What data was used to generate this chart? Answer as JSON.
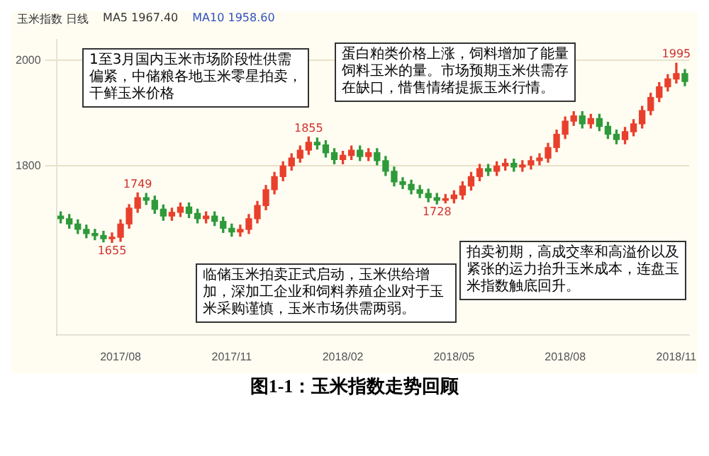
{
  "chart_data": {
    "type": "candlestick",
    "title": "图1-1：玉米指数走势回顾",
    "subtitle": "玉米指数 日线",
    "categories": [
      null,
      null,
      null,
      null,
      null,
      null,
      null,
      "2017/08",
      null,
      null,
      null,
      null,
      null,
      null,
      null,
      null,
      null,
      null,
      null,
      null,
      "2017/11",
      null,
      null,
      null,
      null,
      null,
      null,
      null,
      null,
      null,
      null,
      null,
      null,
      "2018/02",
      null,
      null,
      null,
      null,
      null,
      null,
      null,
      null,
      null,
      null,
      null,
      null,
      "2018/05",
      null,
      null,
      null,
      null,
      null,
      null,
      null,
      null,
      null,
      null,
      null,
      null,
      "2018/08",
      null,
      null,
      null,
      null,
      null,
      null,
      null,
      null,
      null,
      null,
      null,
      null,
      "2018/11",
      null
    ],
    "ohlc": [
      [
        1705,
        1713,
        1692,
        1700
      ],
      [
        1700,
        1708,
        1682,
        1690
      ],
      [
        1690,
        1698,
        1672,
        1680
      ],
      [
        1680,
        1688,
        1664,
        1672
      ],
      [
        1672,
        1680,
        1660,
        1668
      ],
      [
        1668,
        1676,
        1656,
        1662
      ],
      [
        1662,
        1673,
        1655,
        1665
      ],
      [
        1665,
        1698,
        1657,
        1690
      ],
      [
        1690,
        1727,
        1682,
        1720
      ],
      [
        1720,
        1749,
        1712,
        1740
      ],
      [
        1740,
        1748,
        1727,
        1735
      ],
      [
        1735,
        1743,
        1710,
        1718
      ],
      [
        1718,
        1726,
        1697,
        1705
      ],
      [
        1705,
        1720,
        1697,
        1712
      ],
      [
        1712,
        1730,
        1704,
        1722
      ],
      [
        1722,
        1730,
        1702,
        1710
      ],
      [
        1710,
        1718,
        1692,
        1700
      ],
      [
        1700,
        1713,
        1692,
        1705
      ],
      [
        1705,
        1713,
        1687,
        1695
      ],
      [
        1695,
        1703,
        1674,
        1682
      ],
      [
        1682,
        1690,
        1667,
        1675
      ],
      [
        1675,
        1688,
        1667,
        1680
      ],
      [
        1680,
        1708,
        1672,
        1700
      ],
      [
        1700,
        1733,
        1692,
        1725
      ],
      [
        1725,
        1763,
        1717,
        1755
      ],
      [
        1755,
        1788,
        1747,
        1780
      ],
      [
        1780,
        1808,
        1772,
        1800
      ],
      [
        1800,
        1823,
        1792,
        1815
      ],
      [
        1815,
        1838,
        1807,
        1830
      ],
      [
        1830,
        1855,
        1822,
        1845
      ],
      [
        1845,
        1853,
        1832,
        1840
      ],
      [
        1840,
        1848,
        1817,
        1825
      ],
      [
        1825,
        1833,
        1804,
        1812
      ],
      [
        1812,
        1828,
        1804,
        1820
      ],
      [
        1820,
        1838,
        1812,
        1830
      ],
      [
        1830,
        1838,
        1810,
        1818
      ],
      [
        1818,
        1833,
        1810,
        1825
      ],
      [
        1825,
        1833,
        1802,
        1810
      ],
      [
        1810,
        1818,
        1782,
        1790
      ],
      [
        1790,
        1798,
        1762,
        1770
      ],
      [
        1770,
        1778,
        1757,
        1765
      ],
      [
        1765,
        1773,
        1747,
        1755
      ],
      [
        1755,
        1763,
        1740,
        1748
      ],
      [
        1748,
        1756,
        1732,
        1740
      ],
      [
        1740,
        1748,
        1728,
        1735
      ],
      [
        1735,
        1746,
        1730,
        1738
      ],
      [
        1738,
        1753,
        1730,
        1745
      ],
      [
        1745,
        1770,
        1737,
        1762
      ],
      [
        1762,
        1788,
        1754,
        1780
      ],
      [
        1780,
        1803,
        1772,
        1795
      ],
      [
        1795,
        1803,
        1782,
        1790
      ],
      [
        1790,
        1808,
        1782,
        1800
      ],
      [
        1800,
        1813,
        1792,
        1805
      ],
      [
        1805,
        1813,
        1790,
        1798
      ],
      [
        1798,
        1810,
        1790,
        1802
      ],
      [
        1802,
        1818,
        1794,
        1810
      ],
      [
        1810,
        1823,
        1802,
        1815
      ],
      [
        1815,
        1843,
        1807,
        1835
      ],
      [
        1835,
        1868,
        1827,
        1860
      ],
      [
        1860,
        1893,
        1852,
        1885
      ],
      [
        1885,
        1903,
        1877,
        1895
      ],
      [
        1895,
        1903,
        1872,
        1880
      ],
      [
        1880,
        1898,
        1872,
        1890
      ],
      [
        1890,
        1898,
        1867,
        1875
      ],
      [
        1875,
        1883,
        1852,
        1860
      ],
      [
        1860,
        1868,
        1842,
        1850
      ],
      [
        1850,
        1873,
        1842,
        1865
      ],
      [
        1865,
        1888,
        1857,
        1880
      ],
      [
        1880,
        1913,
        1872,
        1905
      ],
      [
        1905,
        1938,
        1897,
        1930
      ],
      [
        1930,
        1958,
        1922,
        1950
      ],
      [
        1950,
        1973,
        1942,
        1965
      ],
      [
        1965,
        1995,
        1957,
        1975
      ],
      [
        1975,
        1983,
        1952,
        1960
      ]
    ],
    "colors": [
      "#2e9a3a",
      "#2e9a3a",
      "#2e9a3a",
      "#2e9a3a",
      "#2e9a3a",
      "#2e9a3a",
      "#e8402c",
      "#e8402c",
      "#e8402c",
      "#e8402c",
      "#2e9a3a",
      "#2e9a3a",
      "#2e9a3a",
      "#e8402c",
      "#e8402c",
      "#2e9a3a",
      "#2e9a3a",
      "#e8402c",
      "#2e9a3a",
      "#2e9a3a",
      "#2e9a3a",
      "#e8402c",
      "#e8402c",
      "#e8402c",
      "#e8402c",
      "#e8402c",
      "#e8402c",
      "#e8402c",
      "#e8402c",
      "#e8402c",
      "#2e9a3a",
      "#2e9a3a",
      "#2e9a3a",
      "#e8402c",
      "#e8402c",
      "#2e9a3a",
      "#e8402c",
      "#2e9a3a",
      "#2e9a3a",
      "#2e9a3a",
      "#2e9a3a",
      "#2e9a3a",
      "#2e9a3a",
      "#2e9a3a",
      "#2e9a3a",
      "#e8402c",
      "#e8402c",
      "#e8402c",
      "#e8402c",
      "#e8402c",
      "#2e9a3a",
      "#e8402c",
      "#e8402c",
      "#2e9a3a",
      "#e8402c",
      "#e8402c",
      "#e8402c",
      "#e8402c",
      "#e8402c",
      "#e8402c",
      "#e8402c",
      "#2e9a3a",
      "#e8402c",
      "#2e9a3a",
      "#2e9a3a",
      "#2e9a3a",
      "#e8402c",
      "#e8402c",
      "#e8402c",
      "#e8402c",
      "#e8402c",
      "#e8402c",
      "#e8402c",
      "#2e9a3a"
    ],
    "ylim": [
      1480,
      2040
    ],
    "yticks": [
      1800,
      2000
    ],
    "grid": "y",
    "legend": false,
    "annotations": [
      "MA5 1967.40",
      "MA10 1958.60",
      "1至3月国内玉米市场阶段性供需偏紧，中储粮各地玉米零星拍卖，干鲜玉米价格",
      "蛋白粕类价格上涨，饲料增加了能量饲料玉米的量。市场预期玉米供需存在缺口，惜售情绪提振玉米行情。",
      "临储玉米拍卖正式启动，玉米供给增加，深加工企业和饲料养殖企业对于玉米采购谨慎，玉米市场供需两弱。",
      "拍卖初期，高成交率和高溢价以及紧张的运力抬升玉米成本，连盘玉米指数触底回升。",
      {
        "text": "1655",
        "y": 1655
      },
      {
        "text": "1749",
        "y": 1749
      },
      {
        "text": "1855",
        "y": 1855
      },
      {
        "text": "1728",
        "y": 1728
      },
      {
        "text": "1995",
        "y": 1995
      }
    ]
  }
}
